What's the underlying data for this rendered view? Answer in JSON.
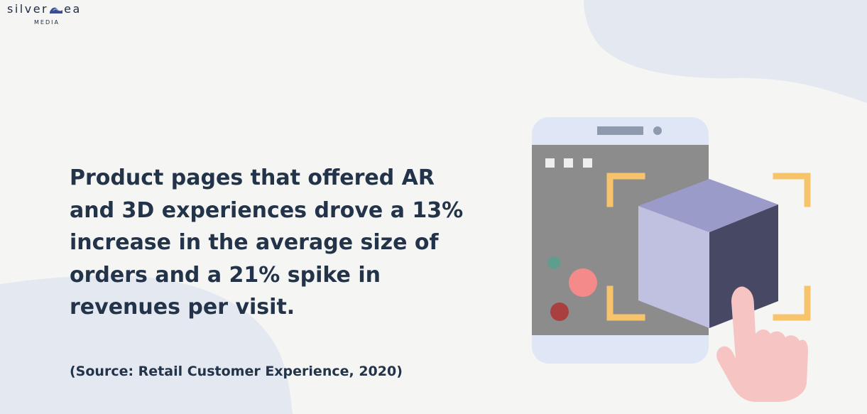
{
  "logo": {
    "text_left": "silver",
    "text_right": "ea",
    "subtext": "MEDIA"
  },
  "headline": "Product pages that offered AR and 3D experiences drove a 13% increase in the average size of orders and a 21% spike in revenues per visit.",
  "source": "(Source: Retail Customer Experience, 2020)",
  "colors": {
    "background": "#f5f6f3",
    "blob": "#e4e9f1",
    "text": "#233349",
    "phone_body": "#dfe6f5",
    "screen": "#8c8c8c",
    "bracket": "#f7c46b",
    "cube_top": "#9b9bca",
    "cube_front": "#c0c0e0",
    "cube_side": "#474964",
    "hand": "#f7c4c4"
  },
  "illustration": {
    "icon": "phone-ar-cube-hand-icon"
  }
}
